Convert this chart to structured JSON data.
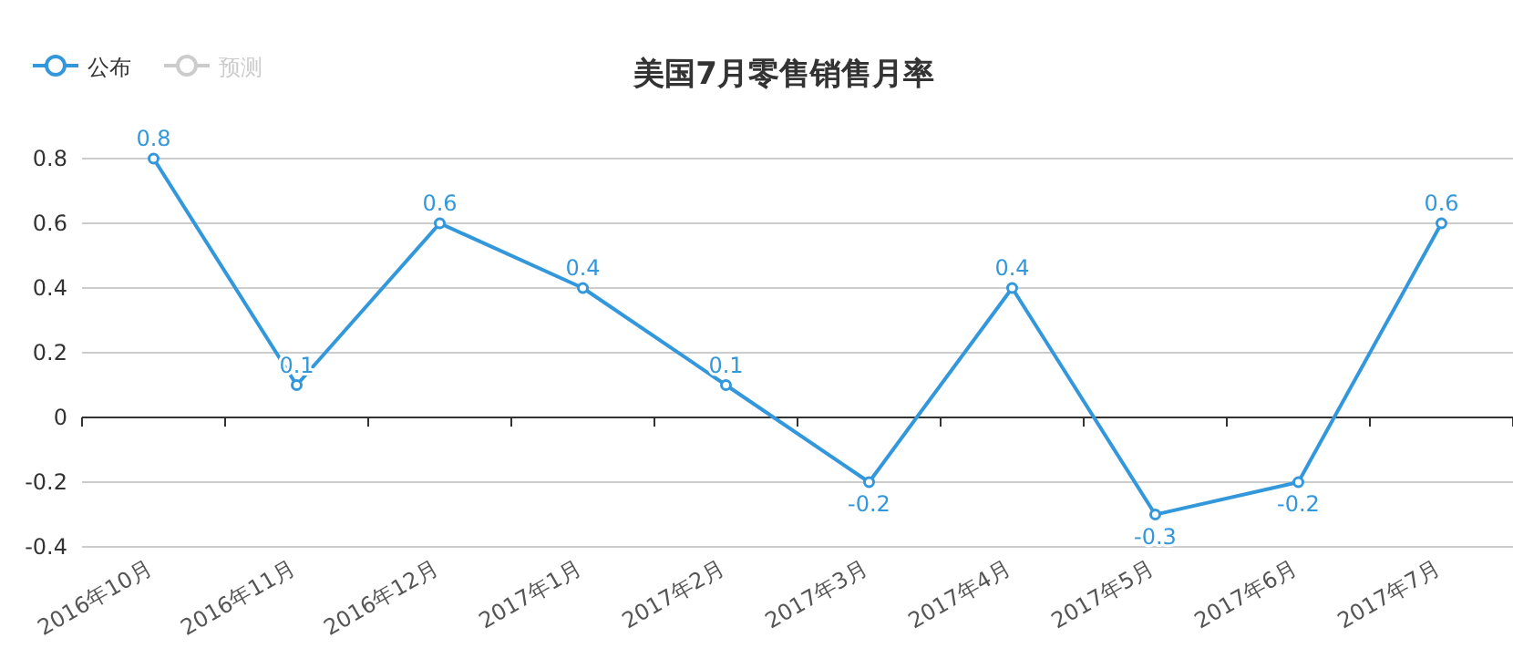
{
  "chart_data": {
    "type": "line",
    "title": "美国7月零售销售月率",
    "categories": [
      "2016年10月",
      "2016年11月",
      "2016年12月",
      "2017年1月",
      "2017年2月",
      "2017年3月",
      "2017年4月",
      "2017年5月",
      "2017年6月",
      "2017年7月"
    ],
    "series": [
      {
        "name": "公布",
        "color": "#3398db",
        "values": [
          0.8,
          0.1,
          0.6,
          0.4,
          0.1,
          -0.2,
          0.4,
          -0.3,
          -0.2,
          0.6
        ]
      },
      {
        "name": "预测",
        "color": "#cccccc",
        "values": [
          null,
          null,
          null,
          null,
          null,
          null,
          null,
          null,
          null,
          null
        ]
      }
    ],
    "ylim": [
      -0.4,
      0.8
    ],
    "yticks": [
      -0.4,
      -0.2,
      0,
      0.2,
      0.4,
      0.6,
      0.8
    ],
    "grid": "y",
    "legend": "top left",
    "marker": "circle",
    "data_labels": true
  }
}
